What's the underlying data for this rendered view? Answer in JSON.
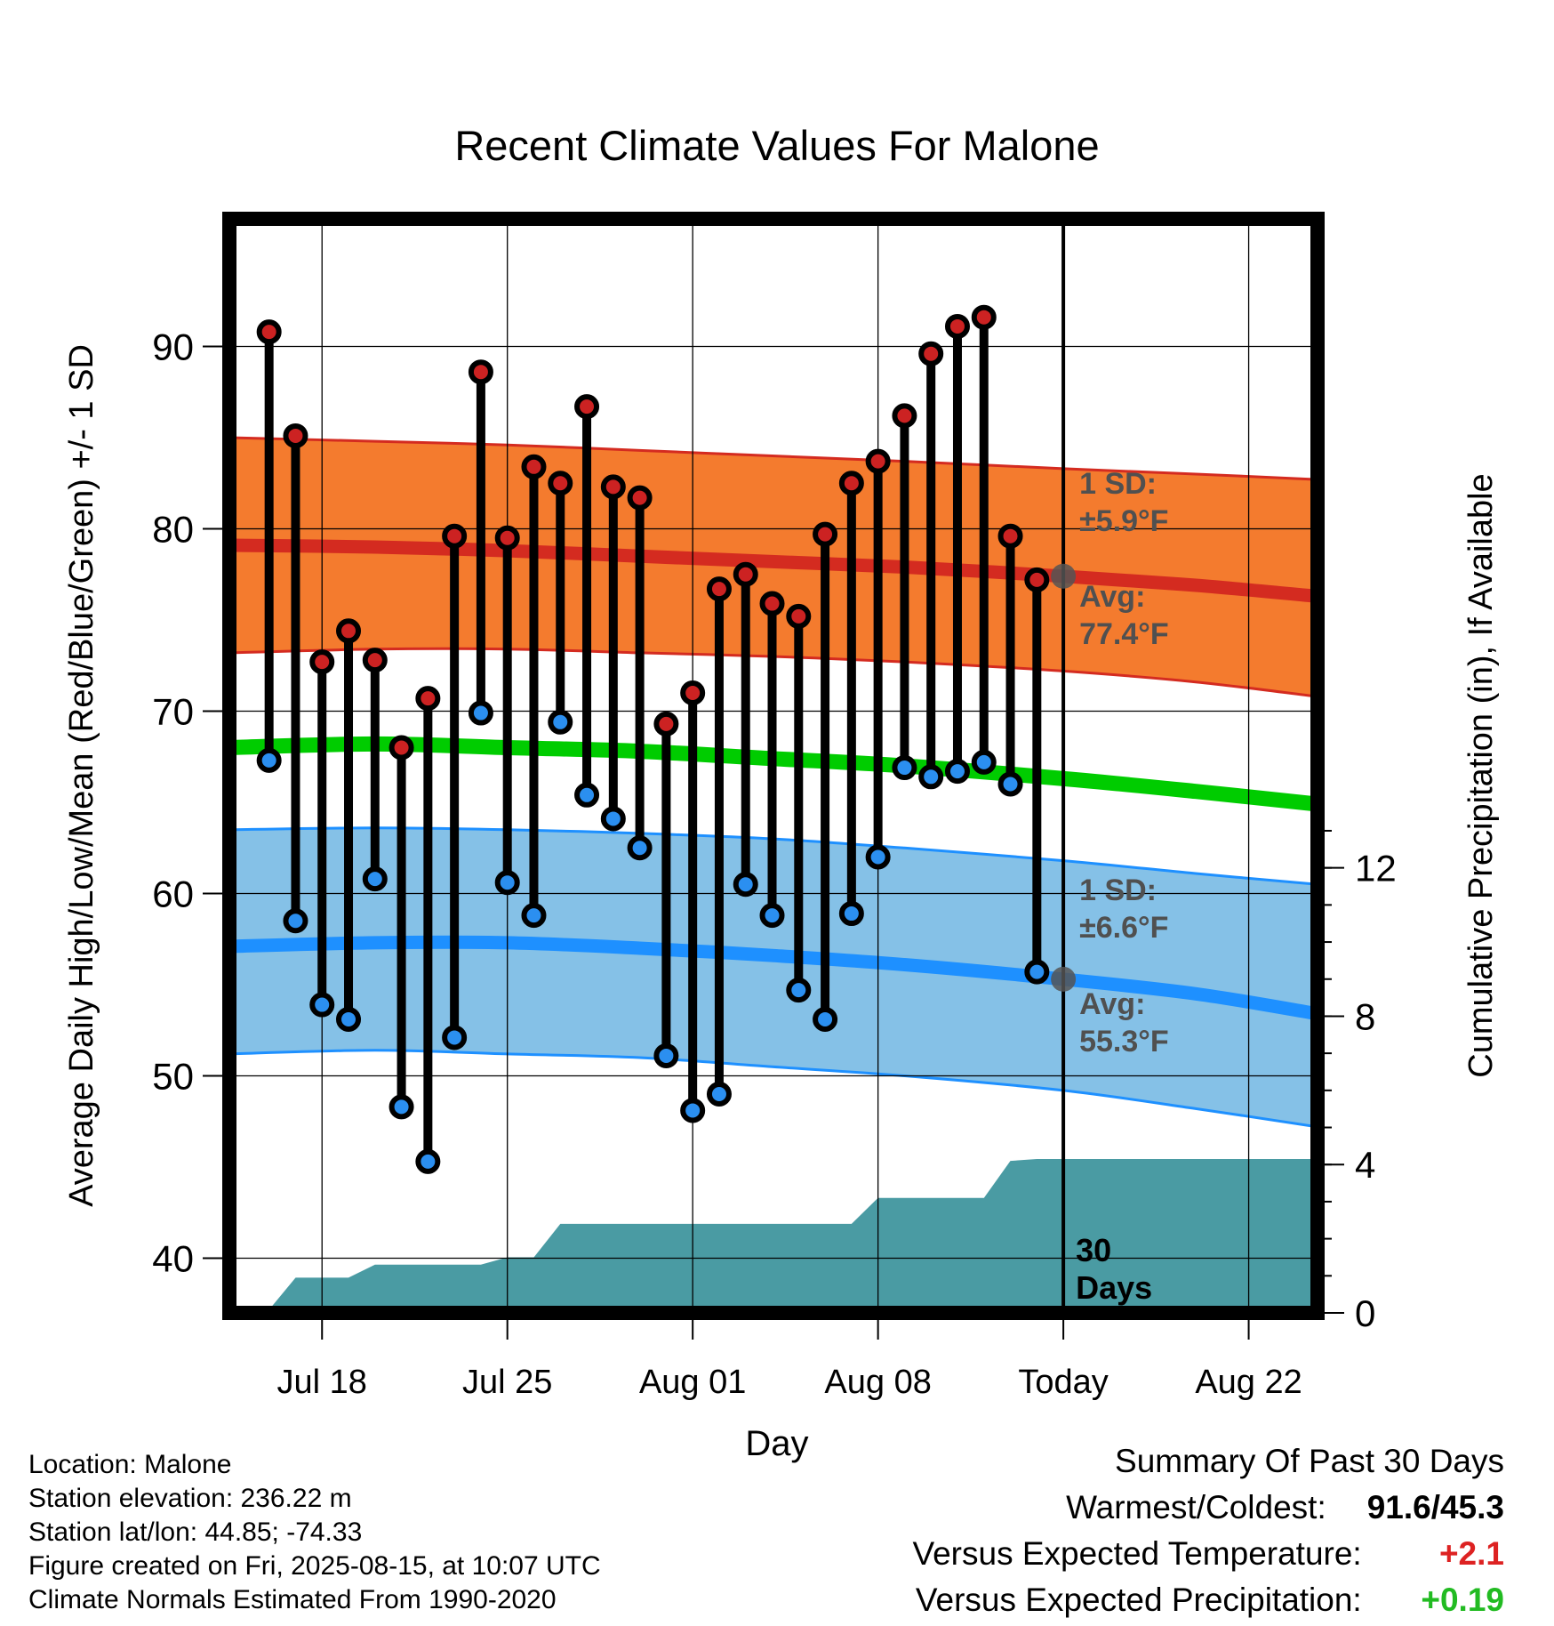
{
  "chart_data": {
    "type": "line",
    "title": "Recent Climate Values For Malone",
    "xlabel": "Day",
    "ylabel": "Average Daily High/Low/Mean (Red/Blue/Green) +/- 1 SD",
    "y2label": "Cumulative Precipitation (in), If Available",
    "ylim": [
      37,
      97
    ],
    "y2lim": [
      0,
      29.5
    ],
    "y_ticks": [
      "40",
      "50",
      "60",
      "70",
      "80",
      "90"
    ],
    "y_tick_values": [
      40,
      50,
      60,
      70,
      80,
      90
    ],
    "y2_ticks": [
      "0",
      "4",
      "8",
      "12"
    ],
    "y2_tick_values": [
      0,
      4,
      8,
      12
    ],
    "x_ticks": [
      {
        "label": "Jul 18",
        "day": 3
      },
      {
        "label": "Jul 25",
        "day": 10
      },
      {
        "label": "Aug 01",
        "day": 17
      },
      {
        "label": "Aug 08",
        "day": 24
      },
      {
        "label": "Today",
        "day": 31
      },
      {
        "label": "Aug 22",
        "day": 38
      }
    ],
    "x_range": [
      -0.5,
      40.6
    ],
    "grid": true,
    "today_day": 31,
    "today_label": [
      "30",
      "Days"
    ],
    "days": [
      1,
      2,
      3,
      4,
      5,
      6,
      7,
      8,
      9,
      10,
      11,
      12,
      13,
      14,
      15,
      16,
      17,
      18,
      19,
      20,
      21,
      22,
      23,
      24,
      25,
      26,
      27,
      28,
      29,
      30
    ],
    "highs": [
      90.8,
      85.1,
      72.7,
      74.4,
      72.8,
      68.0,
      70.7,
      79.6,
      88.6,
      79.5,
      83.4,
      82.5,
      86.7,
      82.3,
      81.7,
      69.3,
      71.0,
      76.7,
      77.5,
      75.9,
      75.2,
      79.7,
      82.5,
      83.7,
      86.2,
      89.6,
      91.1,
      91.6,
      79.6,
      77.2
    ],
    "lows": [
      67.3,
      58.5,
      53.9,
      53.1,
      60.8,
      48.3,
      45.3,
      52.1,
      69.9,
      60.6,
      58.8,
      69.4,
      65.4,
      64.1,
      62.5,
      51.1,
      48.1,
      49.0,
      60.5,
      58.8,
      54.7,
      53.1,
      58.9,
      62.0,
      66.9,
      66.4,
      66.7,
      67.2,
      66.0,
      55.7
    ],
    "normals": {
      "days": [
        -0.5,
        5,
        10,
        15,
        20,
        25,
        31,
        36,
        40.6
      ],
      "high_mean": [
        79.1,
        79.0,
        78.8,
        78.5,
        78.2,
        77.9,
        77.4,
        76.9,
        76.3
      ],
      "high_upper": [
        85.0,
        84.8,
        84.6,
        84.3,
        84.0,
        83.7,
        83.3,
        83.0,
        82.7
      ],
      "high_lower": [
        73.2,
        73.4,
        73.4,
        73.2,
        73.0,
        72.7,
        72.2,
        71.6,
        70.8
      ],
      "mean": [
        68.0,
        68.2,
        68.0,
        67.8,
        67.4,
        67.0,
        66.3,
        65.6,
        64.9
      ],
      "low_mean": [
        57.1,
        57.3,
        57.3,
        57.0,
        56.6,
        56.1,
        55.3,
        54.5,
        53.4
      ],
      "low_upper": [
        63.5,
        63.6,
        63.5,
        63.3,
        63.0,
        62.5,
        61.8,
        61.1,
        60.5
      ],
      "low_lower": [
        51.2,
        51.4,
        51.2,
        51.0,
        50.5,
        50.0,
        49.2,
        48.2,
        47.2
      ]
    },
    "high_today": 77.4,
    "low_today": 55.3,
    "high_sd_label": [
      "1 SD:",
      "±5.9°F"
    ],
    "high_avg_label": [
      "Avg:",
      "77.4°F"
    ],
    "low_sd_label": [
      "1 SD:",
      "±6.6°F"
    ],
    "low_avg_label": [
      "Avg:",
      "55.3°F"
    ],
    "precip_steps": [
      [
        0.9,
        0
      ],
      [
        2.0,
        0.95
      ],
      [
        3.0,
        0.95
      ],
      [
        4.0,
        0.95
      ],
      [
        5.0,
        1.3
      ],
      [
        6.0,
        1.3
      ],
      [
        7.0,
        1.3
      ],
      [
        8.0,
        1.3
      ],
      [
        9.0,
        1.3
      ],
      [
        10.0,
        1.5
      ],
      [
        11.0,
        1.5
      ],
      [
        12.0,
        2.4
      ],
      [
        13.0,
        2.4
      ],
      [
        14.0,
        2.4
      ],
      [
        15.0,
        2.4
      ],
      [
        16.0,
        2.4
      ],
      [
        17.0,
        2.4
      ],
      [
        18.0,
        2.4
      ],
      [
        19.0,
        2.4
      ],
      [
        20.0,
        2.4
      ],
      [
        21.0,
        2.4
      ],
      [
        22.0,
        2.4
      ],
      [
        23.0,
        2.4
      ],
      [
        24.0,
        3.1
      ],
      [
        25.0,
        3.1
      ],
      [
        26.0,
        3.1
      ],
      [
        27.0,
        3.1
      ],
      [
        28.0,
        3.1
      ],
      [
        29.0,
        4.1
      ],
      [
        30.0,
        4.15
      ],
      [
        31.0,
        4.15
      ],
      [
        40.6,
        4.15
      ]
    ],
    "colors": {
      "high_band": "#f47b2e",
      "high_line": "#d42b20",
      "mean_line": "#00cc00",
      "low_band": "#85c1e7",
      "low_line": "#1e90ff",
      "precip": "#4a9ba3",
      "high_marker": "#cc2222",
      "low_marker": "#2b8ff0",
      "label_gray": "#505050"
    }
  },
  "info": {
    "location": "Location: Malone",
    "elevation": "Station elevation: 236.22 m",
    "latlon": "Station lat/lon: 44.85; -74.33",
    "created": "Figure created on Fri, 2025-08-15, at 10:07 UTC",
    "normals": "Climate Normals Estimated From 1990-2020"
  },
  "summary": {
    "title": "Summary Of Past 30 Days",
    "warm_cold_label": "Warmest/Coldest:",
    "warm_cold_value": "91.6/45.3",
    "temp_label": "Versus Expected Temperature:",
    "temp_value": "+2.1",
    "temp_color": "#dd2222",
    "precip_label": "Versus Expected Precipitation:",
    "precip_value": "+0.19",
    "precip_color": "#22bb22"
  }
}
